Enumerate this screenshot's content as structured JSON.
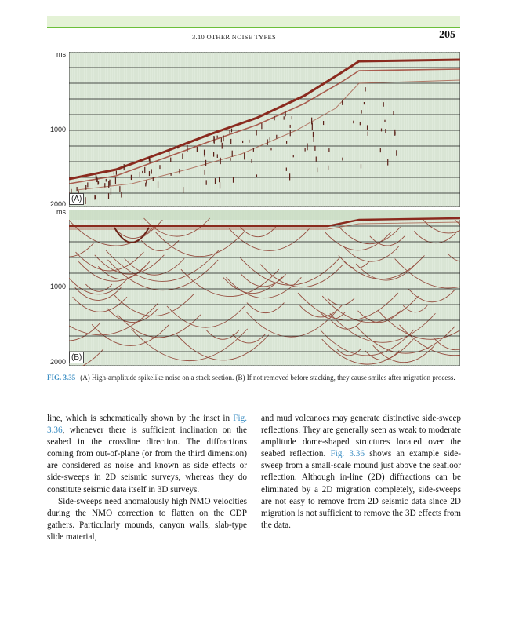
{
  "header": {
    "running_head": "3.10 OTHER NOISE TYPES",
    "page_number": "205"
  },
  "figure": {
    "panel_a": {
      "label": "(A)",
      "axis_labels": [
        "ms",
        "1000",
        "2000"
      ]
    },
    "panel_b": {
      "label": "(B)",
      "axis_labels": [
        "ms",
        "1000",
        "2000"
      ]
    },
    "caption_label": "FIG. 3.35",
    "caption_text": "(A) High-amplitude spikelike noise on a stack section. (B) If not removed before stacking, they cause smiles after migration process."
  },
  "left_column": {
    "p1_part1": "line, which is schematically shown by the inset in ",
    "p1_ref": "Fig. 3.36",
    "p1_part2": ", whenever there is sufficient inclination on the seabed in the crossline direction. The diffractions coming from out-of-plane (or from the third dimension) are considered as noise and known as side effects or side-sweeps in 2D seismic surveys, whereas they do constitute seismic data itself in 3D surveys.",
    "p2": "Side-sweeps need anomalously high NMO velocities during the NMO correction to flatten on the CDP gathers. Particularly mounds, canyon walls, slab-type slide material,"
  },
  "right_column": {
    "part1": "and mud volcanoes may generate distinctive side-sweep reflections. They are generally seen as weak to moderate amplitude dome-shaped structures located over the seabed reflection. ",
    "ref": "Fig. 3.36",
    "part2": " shows an example side-sweep from a small-scale mound just above the seafloor reflection. Although in-line (2D) diffractions can be eliminated by a 2D migration completely, side-sweeps are not easy to remove from 2D seismic data since 2D migration is not sufficient to remove the 3D effects from the data."
  },
  "colors": {
    "accent_green": "#6bbf3a",
    "header_band": "#e4f2d6",
    "link_blue": "#3d8fc4",
    "seismic_bg": "#dfeadb",
    "seismic_ink": "#8a2a1e"
  }
}
